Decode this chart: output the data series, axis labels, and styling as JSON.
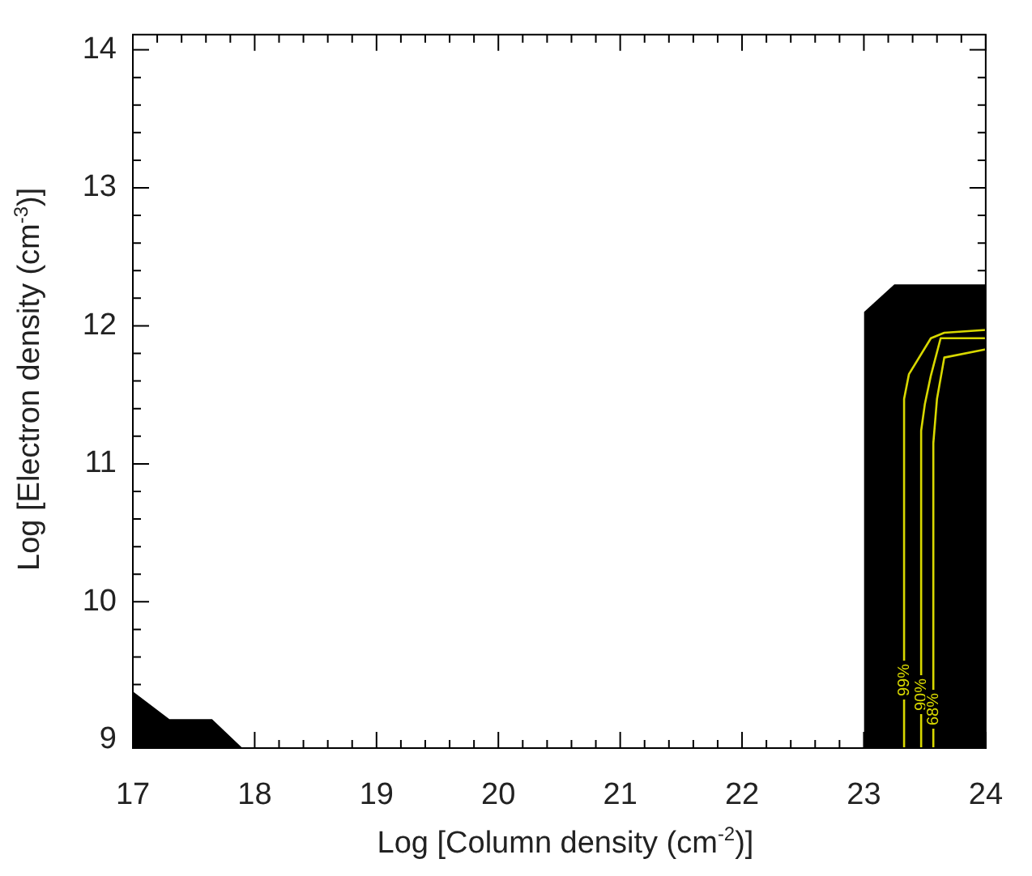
{
  "chart_data": {
    "type": "line",
    "xlabel": "Log [Column density (cm$^{-2}$)]",
    "ylabel": "Log [Electron density (cm$^{-3}$)]",
    "xlim": [
      17,
      24
    ],
    "ylim": [
      8.94,
      14.11
    ],
    "xticks": [
      17,
      {
        "value": 17.2,
        "label": null
      },
      {
        "value": 17.4,
        "label": null
      },
      {
        "value": 17.6,
        "label": null
      },
      {
        "value": 17.8,
        "label": null
      },
      18,
      {
        "value": 18.2,
        "label": null
      },
      {
        "value": 18.4,
        "label": null
      },
      {
        "value": 18.6,
        "label": null
      },
      {
        "value": 18.8,
        "label": null
      },
      19,
      {
        "value": 19.2,
        "label": null
      },
      {
        "value": 19.4,
        "label": null
      },
      {
        "value": 19.6,
        "label": null
      },
      {
        "value": 19.8,
        "label": null
      },
      20,
      {
        "value": 20.2,
        "label": null
      },
      {
        "value": 20.4,
        "label": null
      },
      {
        "value": 20.6,
        "label": null
      },
      {
        "value": 20.8,
        "label": null
      },
      21,
      {
        "value": 21.2,
        "label": null
      },
      {
        "value": 21.4,
        "label": null
      },
      {
        "value": 21.6,
        "label": null
      },
      {
        "value": 21.8,
        "label": null
      },
      22,
      {
        "value": 22.2,
        "label": null
      },
      {
        "value": 22.4,
        "label": null
      },
      {
        "value": 22.6,
        "label": null
      },
      {
        "value": 22.8,
        "label": null
      },
      23,
      {
        "value": 23.2,
        "label": null
      },
      {
        "value": 23.4,
        "label": null
      },
      {
        "value": 23.6,
        "label": null
      },
      {
        "value": 23.8,
        "label": null
      },
      24
    ],
    "yticks": [
      9,
      {
        "value": 9.2,
        "label": null
      },
      {
        "value": 9.4,
        "label": null
      },
      {
        "value": 9.6,
        "label": null
      },
      {
        "value": 9.8,
        "label": null
      },
      10,
      {
        "value": 10.2,
        "label": null
      },
      {
        "value": 10.4,
        "label": null
      },
      {
        "value": 10.6,
        "label": null
      },
      {
        "value": 10.8,
        "label": null
      },
      11,
      {
        "value": 11.2,
        "label": null
      },
      {
        "value": 11.4,
        "label": null
      },
      {
        "value": 11.6,
        "label": null
      },
      {
        "value": 11.8,
        "label": null
      },
      12,
      {
        "value": 12.2,
        "label": null
      },
      {
        "value": 12.4,
        "label": null
      },
      {
        "value": 12.6,
        "label": null
      },
      {
        "value": 12.8,
        "label": null
      },
      13,
      {
        "value": 13.2,
        "label": null
      },
      {
        "value": 13.4,
        "label": null
      },
      {
        "value": 13.6,
        "label": null
      },
      {
        "value": 13.8,
        "label": null
      },
      14
    ],
    "grid": false,
    "legend": false,
    "marker": "none",
    "line_style": "solid",
    "series": [
      {
        "type": "area",
        "color": "#000000",
        "x": [
          23.0,
          23.25,
          23.45,
          24
        ],
        "values": [
          12.1,
          12.3,
          12.3,
          12.3
        ]
      },
      {
        "type": "area",
        "color": "#000000",
        "x": [
          17,
          17.3,
          17.65,
          17.9
        ],
        "values": [
          9.35,
          9.15,
          9.15,
          8.94
        ]
      },
      {
        "name": "99%",
        "color": "#d8d800",
        "x": [
          23.33,
          23.33,
          23.37,
          23.55,
          23.66,
          24
        ],
        "values": [
          8.94,
          11.47,
          11.65,
          11.91,
          11.95,
          11.97
        ]
      },
      {
        "name": "90%",
        "color": "#d8d800",
        "x": [
          23.47,
          23.47,
          23.5,
          23.55,
          23.63,
          24
        ],
        "values": [
          8.94,
          11.24,
          11.43,
          11.64,
          11.91,
          11.91
        ]
      },
      {
        "name": "68%",
        "color": "#d8d800",
        "x": [
          23.57,
          23.57,
          23.6,
          23.66,
          24
        ],
        "values": [
          8.94,
          11.15,
          11.47,
          11.77,
          11.83
        ]
      }
    ]
  }
}
